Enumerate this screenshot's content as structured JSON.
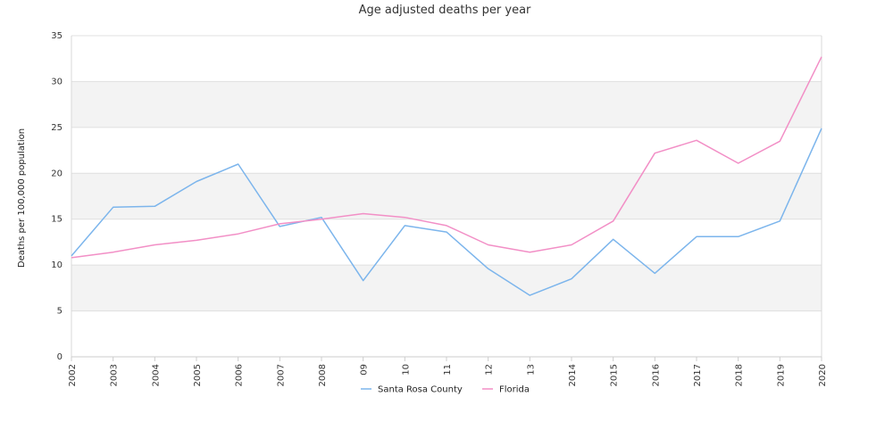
{
  "chart_data": {
    "type": "line",
    "title": "Age adjusted deaths per year",
    "xlabel": "",
    "ylabel": "Deaths per 100,000 population",
    "categories": [
      "2002",
      "2003",
      "2004",
      "2005",
      "2006",
      "2007",
      "2008",
      "09",
      "10",
      "11",
      "12",
      "13",
      "2014",
      "2015",
      "2016",
      "2017",
      "2018",
      "2019",
      "2020"
    ],
    "ylim": [
      0,
      35
    ],
    "yticks": [
      0,
      5,
      10,
      15,
      20,
      25,
      30,
      35
    ],
    "grid": true,
    "banded_background": true,
    "legend_position": "bottom",
    "series": [
      {
        "name": "Santa Rosa County",
        "color": "#7cb5ec",
        "values": [
          11.0,
          16.3,
          16.4,
          19.1,
          21.0,
          14.2,
          15.2,
          8.3,
          14.3,
          13.6,
          9.6,
          6.7,
          8.5,
          12.8,
          9.1,
          13.1,
          13.1,
          14.8,
          24.9
        ]
      },
      {
        "name": "Florida",
        "color": "#f28fc6",
        "values": [
          10.8,
          11.4,
          12.2,
          12.7,
          13.4,
          14.5,
          15.0,
          15.6,
          15.2,
          14.3,
          12.2,
          11.4,
          12.2,
          14.8,
          22.2,
          23.6,
          21.1,
          23.5,
          32.7
        ]
      }
    ]
  }
}
